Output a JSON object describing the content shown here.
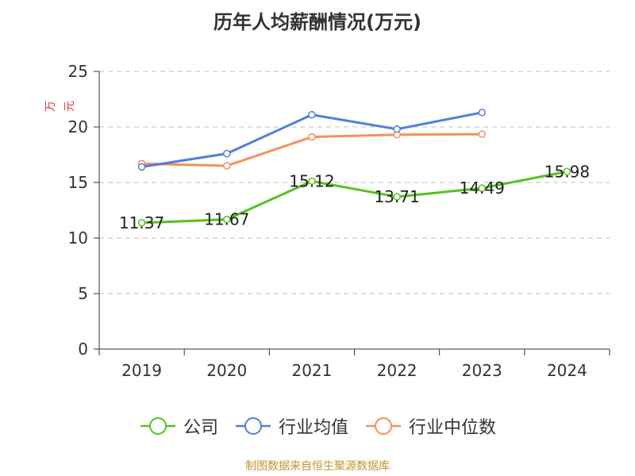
{
  "chart_data": {
    "type": "line",
    "title": "历年人均薪酬情况(万元)",
    "ylabel": "万元",
    "xlabel": "",
    "categories": [
      "2019",
      "2020",
      "2021",
      "2022",
      "2023",
      "2024"
    ],
    "ylim": [
      0,
      25
    ],
    "yticks": [
      0,
      5,
      10,
      15,
      20,
      25
    ],
    "grid": true,
    "legend_position": "bottom",
    "series": [
      {
        "name": "公司",
        "color": "#52c41a",
        "values": [
          11.37,
          11.67,
          15.12,
          13.71,
          14.49,
          15.98
        ],
        "labels": [
          "11.37",
          "11.67",
          "15.12",
          "13.71",
          "14.49",
          "15.98"
        ]
      },
      {
        "name": "行业均值",
        "color": "#4f7fdc",
        "values": [
          16.4,
          17.6,
          21.1,
          19.8,
          21.3,
          null
        ],
        "labels": []
      },
      {
        "name": "行业中位数",
        "color": "#f68f5a",
        "values": [
          16.7,
          16.5,
          19.1,
          19.3,
          19.35,
          null
        ],
        "labels": []
      }
    ]
  },
  "source": "制图数据来自恒生聚源数据库"
}
